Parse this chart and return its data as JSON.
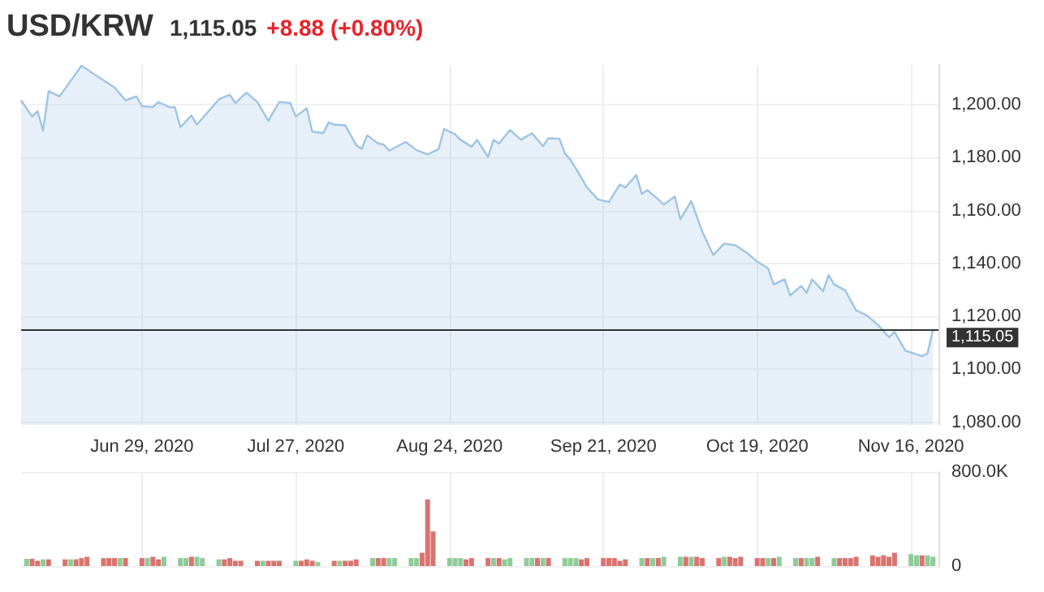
{
  "chart_data": [
    {
      "type": "area",
      "title": "USD/KRW",
      "annotations": [
        "1,115.05",
        "+8.88 (+0.80%)"
      ],
      "x": [
        "2020-06-07",
        "2020-06-09",
        "2020-06-10",
        "2020-06-11",
        "2020-06-12",
        "2020-06-14",
        "2020-06-18",
        "2020-06-20",
        "2020-06-22",
        "2020-06-24",
        "2020-06-26",
        "2020-06-28",
        "2020-06-29",
        "2020-07-01",
        "2020-07-02",
        "2020-07-04",
        "2020-07-05",
        "2020-07-06",
        "2020-07-08",
        "2020-07-09",
        "2020-07-13",
        "2020-07-15",
        "2020-07-16",
        "2020-07-18",
        "2020-07-20",
        "2020-07-22",
        "2020-07-24",
        "2020-07-26",
        "2020-07-27",
        "2020-07-29",
        "2020-07-30",
        "2020-08-01",
        "2020-08-02",
        "2020-08-03",
        "2020-08-05",
        "2020-08-07",
        "2020-08-08",
        "2020-08-09",
        "2020-08-11",
        "2020-08-12",
        "2020-08-13",
        "2020-08-16",
        "2020-08-18",
        "2020-08-20",
        "2020-08-22",
        "2020-08-23",
        "2020-08-25",
        "2020-08-26",
        "2020-08-28",
        "2020-08-29",
        "2020-08-31",
        "2020-09-01",
        "2020-09-02",
        "2020-09-04",
        "2020-09-06",
        "2020-09-08",
        "2020-09-10",
        "2020-09-11",
        "2020-09-13",
        "2020-09-14",
        "2020-09-15",
        "2020-09-17",
        "2020-09-18",
        "2020-09-20",
        "2020-09-22",
        "2020-09-24",
        "2020-09-25",
        "2020-09-27",
        "2020-09-28",
        "2020-09-29",
        "2020-10-01",
        "2020-10-02",
        "2020-10-04",
        "2020-10-05",
        "2020-10-07",
        "2020-10-09",
        "2020-10-11",
        "2020-10-13",
        "2020-10-15",
        "2020-10-17",
        "2020-10-19",
        "2020-10-21",
        "2020-10-22",
        "2020-10-24",
        "2020-10-25",
        "2020-10-27",
        "2020-10-28",
        "2020-10-29",
        "2020-10-31",
        "2020-11-01",
        "2020-11-02",
        "2020-11-04",
        "2020-11-06",
        "2020-11-08",
        "2020-11-10",
        "2020-11-12",
        "2020-11-13",
        "2020-11-15",
        "2020-11-16",
        "2020-11-18",
        "2020-11-19",
        "2020-11-20"
      ],
      "series": [
        {
          "color": "#9fc4e4",
          "values": [
            1201.6,
            1195.5,
            1197.5,
            1190.2,
            1205.1,
            1203.1,
            1214.7,
            1211.9,
            1209.2,
            1206.5,
            1201.6,
            1203.1,
            1199.4,
            1199.0,
            1201.0,
            1199.0,
            1199.0,
            1191.4,
            1195.9,
            1192.4,
            1202.0,
            1203.7,
            1200.6,
            1204.5,
            1201.0,
            1193.9,
            1201.0,
            1200.6,
            1195.5,
            1198.6,
            1189.8,
            1189.2,
            1193.3,
            1192.4,
            1192.2,
            1184.7,
            1183.2,
            1188.4,
            1185.3,
            1184.9,
            1182.6,
            1185.9,
            1182.8,
            1181.2,
            1183.2,
            1190.8,
            1188.8,
            1186.7,
            1184.1,
            1186.7,
            1180.2,
            1186.7,
            1185.3,
            1190.4,
            1186.7,
            1189.2,
            1184.3,
            1187.3,
            1187.1,
            1181.6,
            1179.2,
            1172.4,
            1168.7,
            1164.2,
            1163.2,
            1169.8,
            1168.7,
            1173.4,
            1166.3,
            1167.7,
            1164.2,
            1162.2,
            1165.3,
            1156.7,
            1163.6,
            1152.0,
            1143.2,
            1147.5,
            1146.9,
            1144.2,
            1140.7,
            1138.1,
            1132.1,
            1134.0,
            1127.9,
            1131.5,
            1128.9,
            1134.0,
            1129.5,
            1135.6,
            1132.1,
            1129.9,
            1122.3,
            1120.3,
            1116.8,
            1112.1,
            1114.2,
            1107.0,
            1106.4,
            1105.0,
            1106.0,
            1115.05
          ]
        }
      ],
      "xlim": [
        "2020-06-07",
        "2020-11-21"
      ],
      "xticks": [
        {
          "value": "2020-06-29",
          "label": "Jun 29, 2020"
        },
        {
          "value": "2020-07-27",
          "label": "Jul 27, 2020"
        },
        {
          "value": "2020-08-24",
          "label": "Aug 24, 2020"
        },
        {
          "value": "2020-09-21",
          "label": "Sep 21, 2020"
        },
        {
          "value": "2020-10-19",
          "label": "Oct 19, 2020"
        },
        {
          "value": "2020-11-16",
          "label": "Nov 16, 2020"
        }
      ],
      "ylim": [
        1079,
        1215
      ],
      "yticks": [
        {
          "value": 1080,
          "label": "1,080.00"
        },
        {
          "value": 1100,
          "label": "1,100.00"
        },
        {
          "value": 1120,
          "label": "1,120.00"
        },
        {
          "value": 1140,
          "label": "1,140.00"
        },
        {
          "value": 1160,
          "label": "1,160.00"
        },
        {
          "value": 1180,
          "label": "1,180.00"
        },
        {
          "value": 1200,
          "label": "1,200.00"
        }
      ],
      "ref_lines": [
        {
          "axis": "y",
          "value": 1115.05,
          "label": "1,115.05",
          "color": "#333333"
        }
      ],
      "grid": true,
      "marker": "none"
    },
    {
      "type": "bar",
      "x": [
        "2020-06-08",
        "2020-06-09",
        "2020-06-10",
        "2020-06-11",
        "2020-06-12",
        "2020-06-15",
        "2020-06-16",
        "2020-06-17",
        "2020-06-18",
        "2020-06-19",
        "2020-06-22",
        "2020-06-23",
        "2020-06-24",
        "2020-06-25",
        "2020-06-26",
        "2020-06-29",
        "2020-06-30",
        "2020-07-01",
        "2020-07-02",
        "2020-07-03",
        "2020-07-06",
        "2020-07-07",
        "2020-07-08",
        "2020-07-09",
        "2020-07-10",
        "2020-07-13",
        "2020-07-14",
        "2020-07-15",
        "2020-07-16",
        "2020-07-17",
        "2020-07-20",
        "2020-07-21",
        "2020-07-22",
        "2020-07-23",
        "2020-07-24",
        "2020-07-27",
        "2020-07-28",
        "2020-07-29",
        "2020-07-30",
        "2020-07-31",
        "2020-08-03",
        "2020-08-04",
        "2020-08-05",
        "2020-08-06",
        "2020-08-07",
        "2020-08-10",
        "2020-08-11",
        "2020-08-12",
        "2020-08-13",
        "2020-08-14",
        "2020-08-17",
        "2020-08-18",
        "2020-08-19",
        "2020-08-20",
        "2020-08-21",
        "2020-08-24",
        "2020-08-25",
        "2020-08-26",
        "2020-08-27",
        "2020-08-28",
        "2020-08-31",
        "2020-09-01",
        "2020-09-02",
        "2020-09-03",
        "2020-09-04",
        "2020-09-07",
        "2020-09-08",
        "2020-09-09",
        "2020-09-10",
        "2020-09-11",
        "2020-09-14",
        "2020-09-15",
        "2020-09-16",
        "2020-09-17",
        "2020-09-18",
        "2020-09-21",
        "2020-09-22",
        "2020-09-23",
        "2020-09-24",
        "2020-09-25",
        "2020-09-28",
        "2020-09-29",
        "2020-09-30",
        "2020-10-01",
        "2020-10-02",
        "2020-10-05",
        "2020-10-06",
        "2020-10-07",
        "2020-10-08",
        "2020-10-09",
        "2020-10-12",
        "2020-10-13",
        "2020-10-14",
        "2020-10-15",
        "2020-10-16",
        "2020-10-19",
        "2020-10-20",
        "2020-10-21",
        "2020-10-22",
        "2020-10-23",
        "2020-10-26",
        "2020-10-27",
        "2020-10-28",
        "2020-10-29",
        "2020-10-30",
        "2020-11-02",
        "2020-11-03",
        "2020-11-04",
        "2020-11-05",
        "2020-11-06",
        "2020-11-09",
        "2020-11-10",
        "2020-11-11",
        "2020-11-12",
        "2020-11-13",
        "2020-11-16",
        "2020-11-17",
        "2020-11-18",
        "2020-11-19",
        "2020-11-20"
      ],
      "values": [
        62000,
        62000,
        45000,
        57000,
        57000,
        57000,
        57000,
        57000,
        68000,
        79000,
        68000,
        68000,
        68000,
        68000,
        68000,
        68000,
        68000,
        79000,
        57000,
        79000,
        68000,
        68000,
        79000,
        79000,
        68000,
        57000,
        57000,
        68000,
        45000,
        45000,
        45000,
        45000,
        45000,
        45000,
        45000,
        45000,
        45000,
        57000,
        45000,
        34000,
        45000,
        45000,
        45000,
        45000,
        57000,
        68000,
        68000,
        68000,
        68000,
        68000,
        68000,
        68000,
        113000,
        567000,
        295000,
        68000,
        68000,
        68000,
        57000,
        68000,
        68000,
        68000,
        68000,
        57000,
        68000,
        68000,
        68000,
        68000,
        68000,
        68000,
        68000,
        68000,
        68000,
        57000,
        68000,
        68000,
        68000,
        68000,
        45000,
        57000,
        68000,
        68000,
        68000,
        68000,
        79000,
        79000,
        79000,
        79000,
        79000,
        68000,
        68000,
        79000,
        79000,
        68000,
        79000,
        68000,
        68000,
        68000,
        68000,
        79000,
        68000,
        68000,
        68000,
        68000,
        79000,
        68000,
        68000,
        68000,
        68000,
        79000,
        91000,
        79000,
        91000,
        79000,
        113000,
        102000,
        91000,
        91000,
        91000,
        79000
      ],
      "colors": [
        "#8fcb98",
        "#d9736f",
        "#d9736f",
        "#8fcb98",
        "#d9736f",
        "#d9736f",
        "#8fcb98",
        "#d9736f",
        "#d9736f",
        "#d9736f",
        "#d9736f",
        "#d9736f",
        "#d9736f",
        "#8fcb98",
        "#d9736f",
        "#d9736f",
        "#8fcb98",
        "#d9736f",
        "#d9736f",
        "#8fcb98",
        "#8fcb98",
        "#8fcb98",
        "#d9736f",
        "#8fcb98",
        "#8fcb98",
        "#8fcb98",
        "#d9736f",
        "#d9736f",
        "#d9736f",
        "#d9736f",
        "#d9736f",
        "#8fcb98",
        "#d9736f",
        "#d9736f",
        "#d9736f",
        "#8fcb98",
        "#d9736f",
        "#d9736f",
        "#d9736f",
        "#8fcb98",
        "#d9736f",
        "#8fcb98",
        "#d9736f",
        "#d9736f",
        "#d9736f",
        "#8fcb98",
        "#d9736f",
        "#d9736f",
        "#8fcb98",
        "#8fcb98",
        "#8fcb98",
        "#8fcb98",
        "#d9736f",
        "#d9736f",
        "#d9736f",
        "#8fcb98",
        "#8fcb98",
        "#8fcb98",
        "#d9736f",
        "#d9736f",
        "#d9736f",
        "#8fcb98",
        "#d9736f",
        "#8fcb98",
        "#8fcb98",
        "#8fcb98",
        "#8fcb98",
        "#d9736f",
        "#8fcb98",
        "#d9736f",
        "#8fcb98",
        "#8fcb98",
        "#8fcb98",
        "#d9736f",
        "#d9736f",
        "#d9736f",
        "#d9736f",
        "#d9736f",
        "#d9736f",
        "#d9736f",
        "#8fcb98",
        "#d9736f",
        "#8fcb98",
        "#d9736f",
        "#8fcb98",
        "#8fcb98",
        "#d9736f",
        "#8fcb98",
        "#d9736f",
        "#d9736f",
        "#d9736f",
        "#8fcb98",
        "#d9736f",
        "#d9736f",
        "#d9736f",
        "#d9736f",
        "#d9736f",
        "#8fcb98",
        "#d9736f",
        "#8fcb98",
        "#8fcb98",
        "#d9736f",
        "#8fcb98",
        "#8fcb98",
        "#d9736f",
        "#8fcb98",
        "#d9736f",
        "#d9736f",
        "#d9736f",
        "#d9736f",
        "#d9736f",
        "#d9736f",
        "#d9736f",
        "#d9736f",
        "#d9736f",
        "#8fcb98",
        "#8fcb98",
        "#d9736f",
        "#8fcb98",
        "#8fcb98"
      ],
      "xlim": [
        "2020-06-07",
        "2020-11-21"
      ],
      "ylim": [
        0,
        800000
      ],
      "yticks": [
        0,
        {
          "value": 800000,
          "label": "800.0K"
        }
      ],
      "xticks": [
        {
          "value": "2020-06-29",
          "label": null
        },
        {
          "value": "2020-07-27",
          "label": null
        },
        {
          "value": "2020-08-24",
          "label": null
        },
        {
          "value": "2020-09-21",
          "label": null
        },
        {
          "value": "2020-10-19",
          "label": null
        },
        {
          "value": "2020-11-16",
          "label": null
        }
      ],
      "tick_labels": "y",
      "grid": true
    }
  ]
}
